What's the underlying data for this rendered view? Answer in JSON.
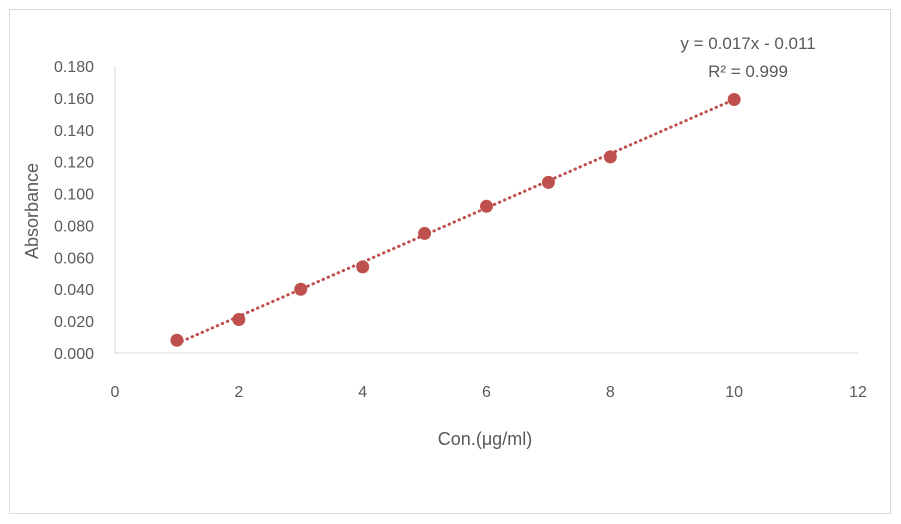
{
  "chart_data": {
    "type": "scatter",
    "xlabel": "Con.(μg/ml)",
    "ylabel": "Absorbance",
    "xlim": [
      0,
      12
    ],
    "ylim": [
      0,
      0.18
    ],
    "xticks": [
      "0",
      "2",
      "4",
      "6",
      "8",
      "10",
      "12"
    ],
    "yticks": [
      "0.000",
      "0.020",
      "0.040",
      "0.060",
      "0.080",
      "0.100",
      "0.120",
      "0.140",
      "0.160",
      "0.180"
    ],
    "grid": false,
    "series": [
      {
        "x": [
          1,
          2,
          3,
          4,
          5,
          6,
          7,
          8,
          10
        ],
        "y": [
          0.008,
          0.021,
          0.04,
          0.054,
          0.075,
          0.092,
          0.107,
          0.123,
          0.159
        ]
      }
    ],
    "trendline": {
      "type": "linear",
      "slope": 0.017,
      "intercept": -0.011,
      "x_range": [
        1,
        10
      ],
      "equation": "y = 0.017x - 0.011",
      "r_squared": "R² = 0.999"
    },
    "colors": {
      "marker": "#c0504d",
      "trendline": "#c0504d",
      "axis": "#d9d9d9",
      "text": "#595959"
    }
  }
}
